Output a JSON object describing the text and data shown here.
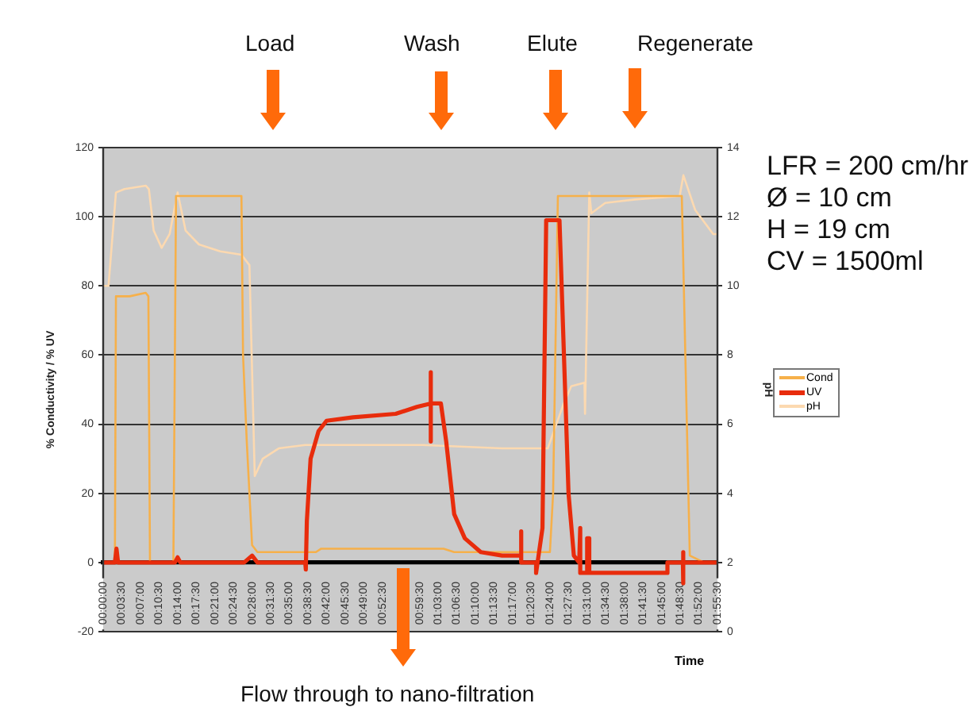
{
  "chart_data": {
    "type": "line",
    "xlabel": "Time",
    "ylabel": "% Conductivity / % UV",
    "y2label": "pH",
    "xlim": [
      0,
      1.925
    ],
    "xticks": [
      {
        "value": 0,
        "label": "00:00:00"
      },
      {
        "value": 0.0583,
        "label": "00:03:30"
      },
      {
        "value": 0.1167,
        "label": "00:07:00"
      },
      {
        "value": 0.175,
        "label": "00:10:30"
      },
      {
        "value": 0.2333,
        "label": "00:14:00"
      },
      {
        "value": 0.2917,
        "label": "00:17:30"
      },
      {
        "value": 0.35,
        "label": "00:21:00"
      },
      {
        "value": 0.4083,
        "label": "00:24:30"
      },
      {
        "value": 0.4667,
        "label": "00:28:00"
      },
      {
        "value": 0.525,
        "label": "00:31:30"
      },
      {
        "value": 0.5833,
        "label": "00:35:00"
      },
      {
        "value": 0.6417,
        "label": "00:38:30"
      },
      {
        "value": 0.7,
        "label": "00:42:00"
      },
      {
        "value": 0.7583,
        "label": "00:45:30"
      },
      {
        "value": 0.8167,
        "label": "00:49:00"
      },
      {
        "value": 0.875,
        "label": "00:52:30"
      },
      {
        "value": 0.9917,
        "label": "00:59:30"
      },
      {
        "value": 1.05,
        "label": "01:03:00"
      },
      {
        "value": 1.1083,
        "label": "01:06:30"
      },
      {
        "value": 1.1667,
        "label": "01:10:00"
      },
      {
        "value": 1.225,
        "label": "01:13:30"
      },
      {
        "value": 1.2833,
        "label": "01:17:00"
      },
      {
        "value": 1.3417,
        "label": "01:20:30"
      },
      {
        "value": 1.4,
        "label": "01:24:00"
      },
      {
        "value": 1.4583,
        "label": "01:27:30"
      },
      {
        "value": 1.5167,
        "label": "01:31:00"
      },
      {
        "value": 1.575,
        "label": "01:34:30"
      },
      {
        "value": 1.6333,
        "label": "01:38:00"
      },
      {
        "value": 1.6917,
        "label": "01:41:30"
      },
      {
        "value": 1.75,
        "label": "01:45:00"
      },
      {
        "value": 1.8083,
        "label": "01:48:30"
      },
      {
        "value": 1.8667,
        "label": "01:52:00"
      },
      {
        "value": 1.925,
        "label": "01:55:30"
      }
    ],
    "ylim": [
      -20,
      120
    ],
    "yticks": [
      -20,
      0,
      20,
      40,
      60,
      80,
      100,
      120
    ],
    "y2lim": [
      0,
      14
    ],
    "y2ticks": [
      0,
      2,
      4,
      6,
      8,
      10,
      12,
      14
    ],
    "grid": "y",
    "legend": "right",
    "series": [
      {
        "name": "Cond",
        "color": "#f6b04a",
        "x": [
          0,
          0.0367,
          0.04,
          0.0833,
          0.1333,
          0.1417,
          0.1467,
          0.22,
          0.2283,
          0.3333,
          0.4333,
          0.4383,
          0.45,
          0.4667,
          0.4833,
          0.6667,
          0.6833,
          1.0667,
          1.1,
          1.4,
          1.41,
          1.425,
          1.8133,
          1.8383,
          1.8833,
          1.925
        ],
        "values": [
          0,
          0,
          77,
          77,
          78,
          77,
          0,
          0,
          106,
          106,
          106,
          60,
          35,
          5,
          3,
          3,
          4,
          4,
          3,
          3,
          20,
          106,
          106,
          2,
          0,
          0
        ]
      },
      {
        "name": "UV",
        "color": "#e82c0c",
        "x": [
          0,
          0.0367,
          0.0417,
          0.0467,
          0.225,
          0.2333,
          0.2417,
          0.4417,
          0.4667,
          0.4833,
          0.6333,
          0.635,
          0.6383,
          0.65,
          0.675,
          0.7,
          0.7833,
          0.9167,
          0.9833,
          1.0267,
          1.0267,
          1.0267,
          1.0267,
          1.0583,
          1.075,
          1.1,
          1.1333,
          1.1833,
          1.25,
          1.31,
          1.31,
          1.31,
          1.3567,
          1.3567,
          1.3767,
          1.3883,
          1.43,
          1.4583,
          1.475,
          1.4917,
          1.495,
          1.495,
          1.5167,
          1.5167,
          1.5233,
          1.5233,
          1.7683,
          1.7683,
          1.8167,
          1.8167,
          1.8167,
          1.82,
          1.925
        ],
        "values": [
          0,
          0,
          4,
          0,
          0,
          1.5,
          0,
          0,
          2,
          0,
          0,
          -2,
          12,
          30,
          38,
          41,
          42,
          43,
          45,
          46,
          55,
          35,
          46,
          46,
          35,
          14,
          7,
          3,
          2,
          2,
          9,
          0,
          0,
          -3,
          10,
          99,
          99,
          20,
          2,
          0,
          10,
          -3,
          -3,
          7,
          7,
          -3,
          -3,
          0,
          0,
          3,
          -6,
          0,
          0
        ]
      },
      {
        "name": "pH",
        "color": "#fcd9b0",
        "axis": "y2",
        "x": [
          0,
          0.0167,
          0.04,
          0.0667,
          0.1333,
          0.1433,
          0.1583,
          0.1833,
          0.2083,
          0.2333,
          0.2583,
          0.3,
          0.3667,
          0.4333,
          0.4583,
          0.475,
          0.5,
          0.55,
          0.6333,
          0.8333,
          1.0,
          1.25,
          1.3933,
          1.4433,
          1.4667,
          1.5083,
          1.51,
          1.5233,
          1.53,
          1.5733,
          1.6667,
          1.8067,
          1.8183,
          1.855,
          1.9117,
          1.925
        ],
        "values": [
          10.0,
          10.0,
          12.7,
          12.8,
          12.9,
          12.8,
          11.6,
          11.1,
          11.5,
          12.7,
          11.6,
          11.2,
          11.0,
          10.9,
          10.6,
          4.5,
          5.0,
          5.3,
          5.4,
          5.4,
          5.4,
          5.3,
          5.3,
          6.6,
          7.1,
          7.2,
          6.3,
          12.7,
          12.1,
          12.4,
          12.5,
          12.6,
          13.2,
          12.2,
          11.5,
          11.5
        ]
      }
    ],
    "annotations": [
      "Load",
      "Wash",
      "Elute",
      "Regenerate",
      "Flow through to nano-filtration",
      "LFR = 200 cm/hr",
      "Ø = 10 cm",
      "H =  19 cm",
      "CV = 1500ml"
    ]
  }
}
